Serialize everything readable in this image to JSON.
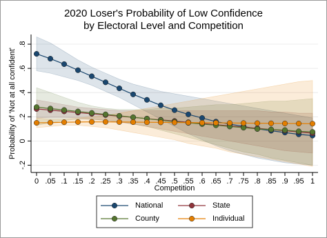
{
  "chart_data": {
    "type": "line",
    "title": [
      "2020 Loser's Probability of Low Confidence",
      "by Electoral Level and Competition"
    ],
    "x_label": "Competition",
    "y_label": "Probability of 'Not at all confident'",
    "x": [
      0,
      0.05,
      0.1,
      0.15,
      0.2,
      0.25,
      0.3,
      0.35,
      0.4,
      0.45,
      0.5,
      0.55,
      0.6,
      0.65,
      0.7,
      0.75,
      0.8,
      0.85,
      0.9,
      0.95,
      1
    ],
    "xlim": [
      -0.02,
      1.02
    ],
    "xticks": [
      0,
      {
        "value": 0.05,
        "label": ".05"
      },
      {
        "value": 0.1,
        "label": ".1"
      },
      {
        "value": 0.15,
        "label": ".15"
      },
      {
        "value": 0.2,
        "label": ".2"
      },
      {
        "value": 0.25,
        "label": ".25"
      },
      {
        "value": 0.3,
        "label": ".3"
      },
      {
        "value": 0.35,
        "label": ".35"
      },
      {
        "value": 0.4,
        "label": ".4"
      },
      {
        "value": 0.45,
        "label": ".45"
      },
      {
        "value": 0.5,
        "label": ".5"
      },
      {
        "value": 0.55,
        "label": ".55"
      },
      {
        "value": 0.6,
        "label": ".6"
      },
      {
        "value": 0.65,
        "label": ".65"
      },
      {
        "value": 0.7,
        "label": ".7"
      },
      {
        "value": 0.75,
        "label": ".75"
      },
      {
        "value": 0.8,
        "label": ".8"
      },
      {
        "value": 0.85,
        "label": ".85"
      },
      {
        "value": 0.9,
        "label": ".9"
      },
      {
        "value": 0.95,
        "label": ".95"
      },
      1
    ],
    "ylim": [
      -0.26,
      0.88
    ],
    "yticks": [
      {
        "value": -0.2,
        "label": "-.2"
      },
      0,
      {
        "value": 0.2,
        "label": ".2"
      },
      {
        "value": 0.4,
        "label": ".4"
      },
      {
        "value": 0.6,
        "label": ".6"
      },
      {
        "value": 0.8,
        "label": ".8"
      }
    ],
    "grid": true,
    "legend": "bottom",
    "series": [
      {
        "name": "National",
        "color": "#1a476f",
        "values": [
          0.72,
          0.68,
          0.635,
          0.585,
          0.535,
          0.485,
          0.435,
          0.385,
          0.34,
          0.295,
          0.255,
          0.22,
          0.19,
          0.16,
          0.14,
          0.12,
          0.1,
          0.085,
          0.07,
          0.055,
          0.045
        ],
        "lower": [
          0.58,
          0.56,
          0.53,
          0.5,
          0.46,
          0.41,
          0.36,
          0.3,
          0.24,
          0.18,
          0.12,
          0.06,
          0.01,
          -0.04,
          -0.08,
          -0.11,
          -0.14,
          -0.16,
          -0.18,
          -0.19,
          -0.2
        ],
        "upper": [
          0.86,
          0.81,
          0.74,
          0.67,
          0.61,
          0.56,
          0.51,
          0.47,
          0.44,
          0.41,
          0.39,
          0.37,
          0.35,
          0.33,
          0.31,
          0.29,
          0.27,
          0.25,
          0.23,
          0.21,
          0.19
        ]
      },
      {
        "name": "State",
        "color": "#90353b",
        "values": [
          0.265,
          0.255,
          0.245,
          0.235,
          0.225,
          0.215,
          0.205,
          0.195,
          0.185,
          0.175,
          0.165,
          0.155,
          0.145,
          0.135,
          0.125,
          0.115,
          0.105,
          0.095,
          0.085,
          0.075,
          0.065
        ],
        "lower": [
          0.19,
          0.195,
          0.195,
          0.19,
          0.18,
          0.17,
          0.155,
          0.14,
          0.12,
          0.1,
          0.08,
          0.06,
          0.04,
          0.02,
          0,
          -0.02,
          -0.04,
          -0.06,
          -0.08,
          -0.09,
          -0.1
        ],
        "upper": [
          0.34,
          0.32,
          0.3,
          0.28,
          0.27,
          0.26,
          0.25,
          0.25,
          0.25,
          0.25,
          0.25,
          0.25,
          0.25,
          0.25,
          0.25,
          0.25,
          0.25,
          0.24,
          0.24,
          0.23,
          0.23
        ]
      },
      {
        "name": "County",
        "color": "#55752f",
        "values": [
          0.28,
          0.268,
          0.256,
          0.244,
          0.232,
          0.22,
          0.208,
          0.196,
          0.184,
          0.172,
          0.16,
          0.15,
          0.14,
          0.13,
          0.12,
          0.11,
          0.1,
          0.095,
          0.09,
          0.08,
          0.075
        ],
        "lower": [
          0.13,
          0.15,
          0.17,
          0.18,
          0.18,
          0.17,
          0.16,
          0.14,
          0.12,
          0.09,
          0.06,
          0.03,
          0,
          -0.03,
          -0.06,
          -0.09,
          -0.11,
          -0.14,
          -0.16,
          -0.18,
          -0.2
        ],
        "upper": [
          0.44,
          0.4,
          0.36,
          0.32,
          0.29,
          0.27,
          0.26,
          0.26,
          0.26,
          0.27,
          0.27,
          0.28,
          0.29,
          0.3,
          0.3,
          0.31,
          0.32,
          0.33,
          0.33,
          0.34,
          0.35
        ]
      },
      {
        "name": "Individual",
        "color": "#e37e00",
        "values": [
          0.15,
          0.152,
          0.155,
          0.157,
          0.158,
          0.158,
          0.157,
          0.156,
          0.155,
          0.154,
          0.153,
          0.152,
          0.151,
          0.15,
          0.149,
          0.148,
          0.147,
          0.146,
          0.145,
          0.144,
          0.143
        ],
        "lower": [
          0.11,
          0.12,
          0.13,
          0.13,
          0.12,
          0.11,
          0.09,
          0.07,
          0.05,
          0.03,
          0.01,
          -0.02,
          -0.04,
          -0.06,
          -0.09,
          -0.11,
          -0.13,
          -0.15,
          -0.17,
          -0.19,
          -0.21
        ],
        "upper": [
          0.19,
          0.18,
          0.18,
          0.19,
          0.2,
          0.21,
          0.23,
          0.25,
          0.27,
          0.29,
          0.31,
          0.33,
          0.35,
          0.37,
          0.39,
          0.41,
          0.43,
          0.45,
          0.47,
          0.49,
          0.5
        ]
      }
    ]
  }
}
